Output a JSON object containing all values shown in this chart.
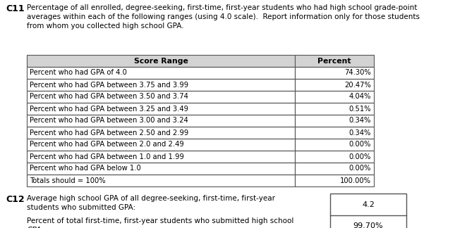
{
  "title_label": "C11",
  "title_text": "Percentage of all enrolled, degree-seeking, first-time, first-year students who had high school grade-point\naverages within each of the following ranges (using 4.0 scale).  Report information only for those students\nfrom whom you collected high school GPA.",
  "table_header": [
    "Score Range",
    "Percent"
  ],
  "table_rows": [
    [
      "Percent who had GPA of 4.0",
      "74.30%"
    ],
    [
      "Percent who had GPA between 3.75 and 3.99",
      "20.47%"
    ],
    [
      "Percent who had GPA between 3.50 and 3.74",
      "4.04%"
    ],
    [
      "Percent who had GPA between 3.25 and 3.49",
      "0.51%"
    ],
    [
      "Percent who had GPA between 3.00 and 3.24",
      "0.34%"
    ],
    [
      "Percent who had GPA between 2.50 and 2.99",
      "0.34%"
    ],
    [
      "Percent who had GPA between 2.0 and 2.49",
      "0.00%"
    ],
    [
      "Percent who had GPA between 1.0 and 1.99",
      "0.00%"
    ],
    [
      "Percent who had GPA below 1.0",
      "0.00%"
    ],
    [
      "Totals should = 100%",
      "100.00%"
    ]
  ],
  "c12_label": "C12",
  "c12_text1": "Average high school GPA of all degree-seeking, first-time, first-year\nstudents who submitted GPA:",
  "c12_val1": "4.2",
  "c12_text2": "Percent of total first-time, first-year students who submitted high school\nGPA:",
  "c12_val2": "99.70%",
  "header_bg": "#d3d3d3",
  "bg_color": "#ffffff",
  "text_color": "#000000",
  "border_color": "#555555",
  "font_size": 7.2,
  "header_font_size": 7.8,
  "title_font_size": 7.5,
  "label_font_size": 9.0
}
